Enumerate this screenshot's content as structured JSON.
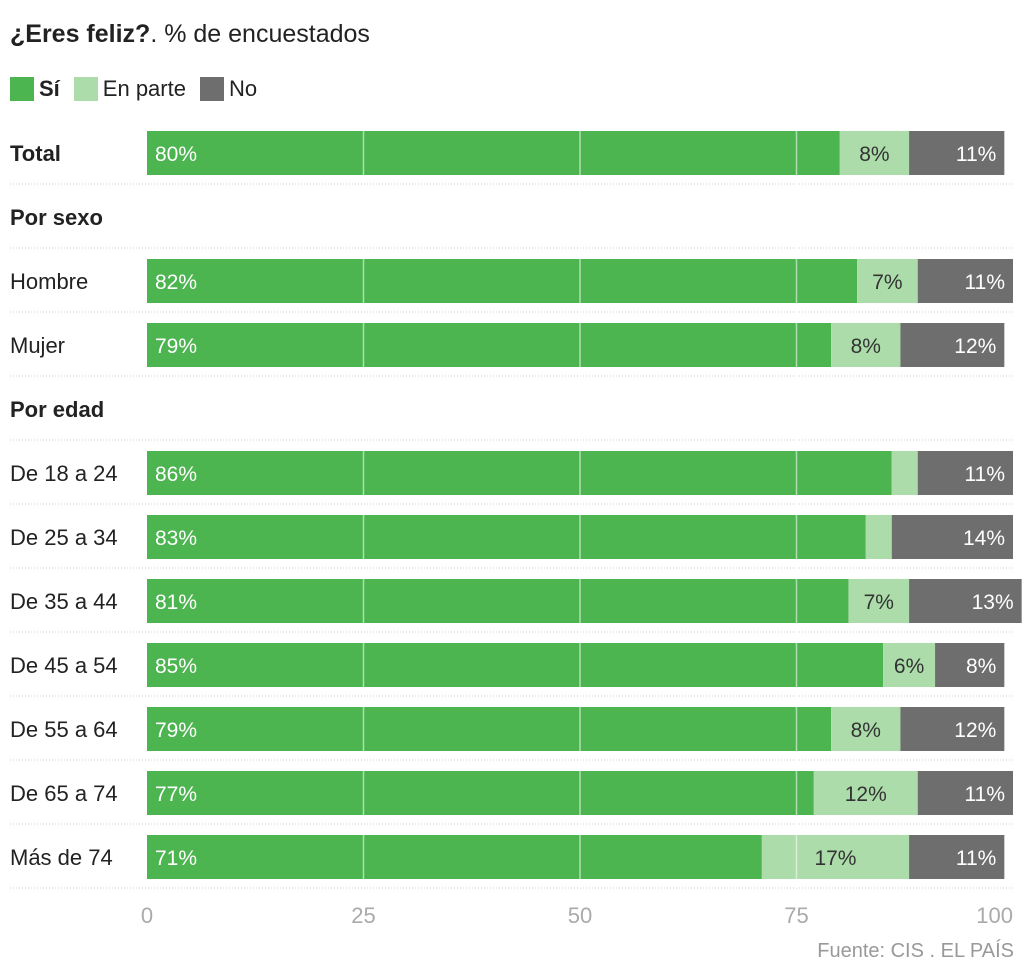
{
  "header": {
    "title_bold": "¿Eres feliz?",
    "title_rest": ". % de encuestados"
  },
  "legend": [
    {
      "label": "Sí",
      "color": "#4cb550",
      "bold": true
    },
    {
      "label": "En parte",
      "color": "#abdcaa",
      "bold": false
    },
    {
      "label": "No",
      "color": "#6e6e6e",
      "bold": false
    }
  ],
  "source": "Fuente: CIS . EL PAÍS",
  "chart_data": {
    "type": "bar",
    "orientation": "horizontal-stacked",
    "title": "¿Eres feliz?. % de encuestados",
    "xlim": [
      0,
      100
    ],
    "xticks": [
      0,
      25,
      50,
      75,
      100
    ],
    "grid": true,
    "legend_position": "top-left",
    "series_names": [
      "Sí",
      "En parte",
      "No"
    ],
    "colors": [
      "#4cb550",
      "#abdcaa",
      "#6e6e6e"
    ],
    "rows": [
      {
        "type": "row",
        "label": "Total",
        "bold": true,
        "values": [
          80,
          8,
          11
        ],
        "labels": [
          "80%",
          "8%",
          "11%"
        ]
      },
      {
        "type": "group",
        "label": "Por sexo"
      },
      {
        "type": "row",
        "label": "Hombre",
        "values": [
          82,
          7,
          11
        ],
        "labels": [
          "82%",
          "7%",
          "11%"
        ]
      },
      {
        "type": "row",
        "label": "Mujer",
        "values": [
          79,
          8,
          12
        ],
        "labels": [
          "79%",
          "8%",
          "12%"
        ]
      },
      {
        "type": "group",
        "label": "Por edad"
      },
      {
        "type": "row",
        "label": "De 18 a 24",
        "values": [
          86,
          3,
          11
        ],
        "labels": [
          "86%",
          "",
          "11%"
        ]
      },
      {
        "type": "row",
        "label": "De 25 a 34",
        "values": [
          83,
          3,
          14
        ],
        "labels": [
          "83%",
          "",
          "14%"
        ]
      },
      {
        "type": "row",
        "label": "De 35 a 44",
        "values": [
          81,
          7,
          13
        ],
        "labels": [
          "81%",
          "7%",
          "13%"
        ]
      },
      {
        "type": "row",
        "label": "De 45 a 54",
        "values": [
          85,
          6,
          8
        ],
        "labels": [
          "85%",
          "6%",
          "8%"
        ]
      },
      {
        "type": "row",
        "label": "De 55 a 64",
        "values": [
          79,
          8,
          12
        ],
        "labels": [
          "79%",
          "8%",
          "12%"
        ]
      },
      {
        "type": "row",
        "label": "De 65 a 74",
        "values": [
          77,
          12,
          11
        ],
        "labels": [
          "77%",
          "12%",
          "11%"
        ]
      },
      {
        "type": "row",
        "label": "Más de 74",
        "values": [
          71,
          17,
          11
        ],
        "labels": [
          "71%",
          "17%",
          "11%"
        ]
      }
    ]
  }
}
